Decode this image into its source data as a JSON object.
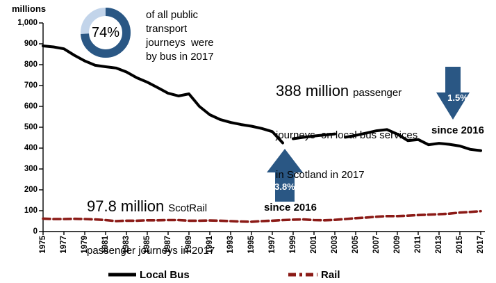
{
  "chart_data": {
    "type": "line",
    "title": "",
    "xlabel": "",
    "ylabel": "millions",
    "ylim": [
      0,
      1000
    ],
    "y_tick_step": 100,
    "grid": false,
    "legend_position": "bottom",
    "y_tick_labels": [
      "0",
      "100",
      "200",
      "300",
      "400",
      "500",
      "600",
      "700",
      "800",
      "900",
      "1,000"
    ],
    "x_tick_labels": [
      "1975",
      "1977",
      "1979",
      "1981",
      "1983",
      "1985",
      "1987",
      "1989",
      "1991",
      "1993",
      "1995",
      "1997",
      "1999",
      "2001",
      "2003",
      "2005",
      "2007",
      "2009",
      "2011",
      "2013",
      "2015",
      "2017"
    ],
    "years": [
      1975,
      1976,
      1977,
      1978,
      1979,
      1980,
      1981,
      1982,
      1983,
      1984,
      1985,
      1986,
      1987,
      1988,
      1989,
      1990,
      1991,
      1992,
      1993,
      1994,
      1995,
      1996,
      1997,
      1998,
      1999,
      2000,
      2001,
      2002,
      2003,
      2004,
      2005,
      2006,
      2007,
      2008,
      2009,
      2010,
      2011,
      2012,
      2013,
      2014,
      2015,
      2016,
      2017
    ],
    "series": [
      {
        "name": "Local Bus",
        "color": "#000000",
        "line_style": "solid",
        "breaks_after": [
          1998,
          2003
        ],
        "values": [
          890,
          885,
          876,
          845,
          818,
          797,
          790,
          784,
          765,
          737,
          716,
          690,
          663,
          650,
          660,
          600,
          560,
          537,
          523,
          513,
          505,
          494,
          479,
          425,
          445,
          452,
          458,
          463,
          468,
          452,
          461,
          472,
          483,
          489,
          467,
          436,
          441,
          416,
          423,
          418,
          410,
          394,
          388
        ]
      },
      {
        "name": "Rail",
        "color": "#8B1A16",
        "line_style": "dashed",
        "values": [
          62,
          60,
          60,
          61,
          60,
          58,
          55,
          50,
          52,
          52,
          54,
          54,
          55,
          55,
          52,
          52,
          53,
          52,
          50,
          48,
          47,
          50,
          52,
          55,
          57,
          58,
          55,
          54,
          56,
          60,
          64,
          67,
          71,
          74,
          74,
          76,
          79,
          81,
          83,
          86,
          91,
          94,
          97.8
        ]
      }
    ]
  },
  "annotations": {
    "donut": {
      "percent": 74,
      "label": "74%",
      "ring_color": "#2A5784",
      "ring_remainder_color": "#C2D4EA",
      "caption_lines": [
        "of all public",
        "transport",
        "journeys  were",
        "by bus in 2017"
      ]
    },
    "bus_callout": {
      "headline": "388 million",
      "headline_suffix": "passenger",
      "line2": "journeys  on local bus services",
      "line3": "in Scotland in 2017"
    },
    "rail_callout": {
      "headline": "97.8 million",
      "headline_suffix": "ScotRail",
      "line2": "passenger journeys in 2017"
    },
    "bus_arrow": {
      "direction": "down",
      "value": "1.5%",
      "caption": "since 2016",
      "color": "#2A5784"
    },
    "rail_arrow": {
      "direction": "up",
      "value": "3.8%",
      "caption": "since 2016",
      "color": "#2A5784"
    }
  }
}
